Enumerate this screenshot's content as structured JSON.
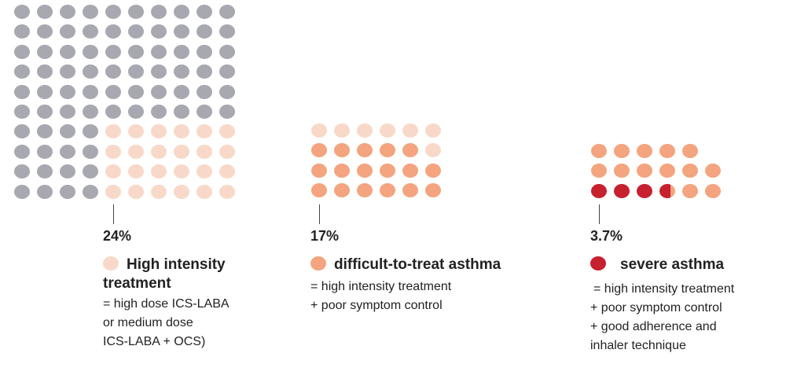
{
  "colors": {
    "gray": "#a8a8b0",
    "light": "#f8d9c9",
    "orange": "#f4a47f",
    "red": "#c7202e"
  },
  "panels": [
    {
      "percent": "24%",
      "title_line1": "High intensity",
      "title_line2": "treatment",
      "legend_color": "light",
      "desc": [
        "= high dose ICS-LABA",
        "or medium dose",
        "ICS-LABA + OCS)"
      ],
      "total_dots": 100,
      "highlighted": 24
    },
    {
      "percent": "17%",
      "title_line1": "difficult-to-treat asthma",
      "legend_color": "orange",
      "desc": [
        "= high intensity treatment",
        "+ poor symptom control"
      ],
      "total_dots": 24,
      "highlighted": 17
    },
    {
      "percent": "3.7%",
      "title_line1": "severe asthma",
      "legend_color": "red",
      "desc": [
        "= high intensity treatment",
        "+ poor symptom control",
        "+ good adherence and",
        "inhaler technique"
      ],
      "total_dots": 17,
      "highlighted": 3.7
    }
  ]
}
